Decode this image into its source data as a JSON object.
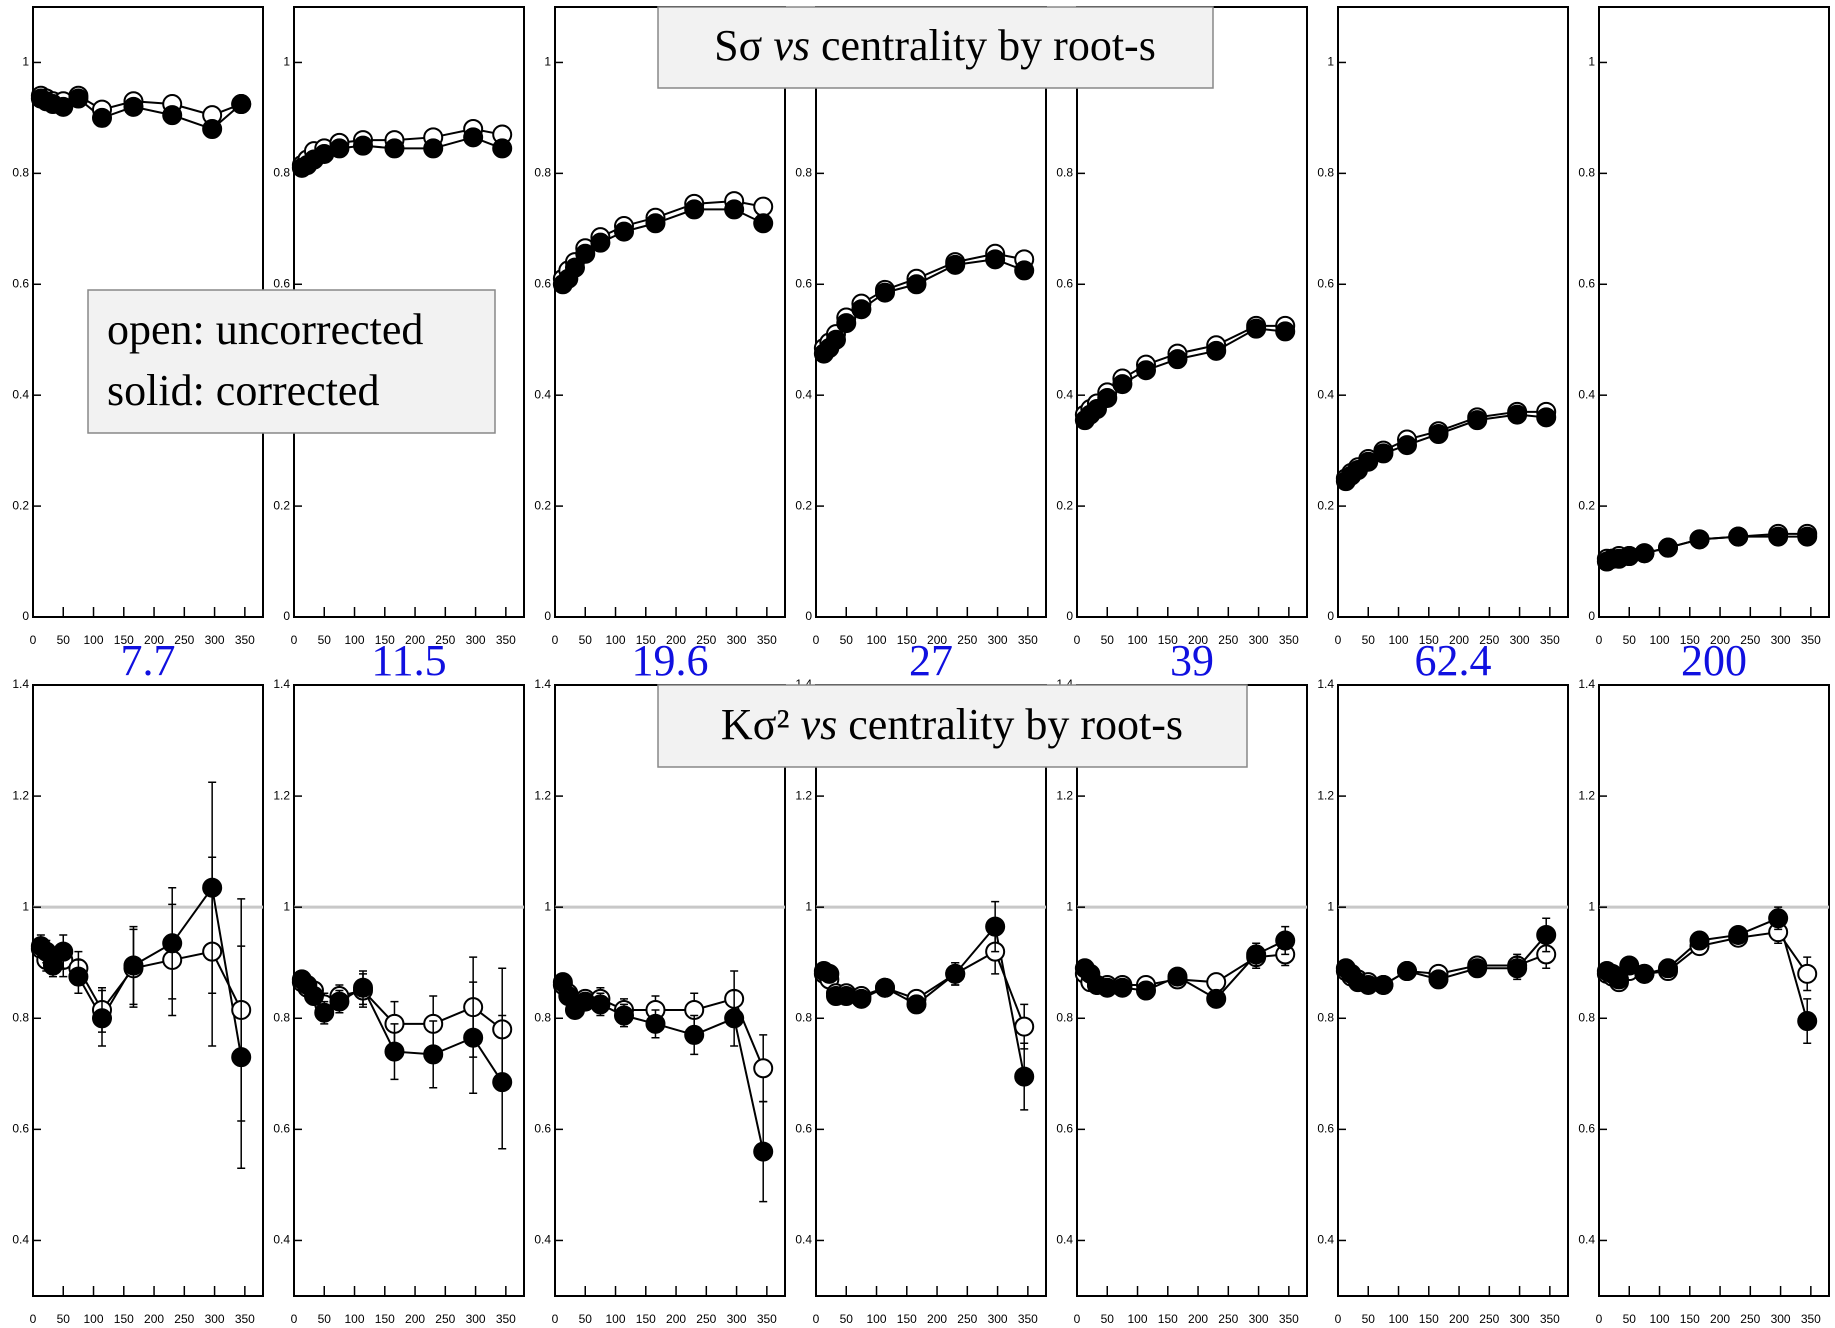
{
  "headers": {
    "top": [
      "Sσ",
      "vs",
      "centrality by root-s"
    ],
    "bottom": [
      "Kσ²",
      "vs",
      "centrality by root-s"
    ]
  },
  "legend_box": [
    "open: uncorrected",
    "solid: corrected"
  ],
  "chart_data": [
    {
      "type": "line",
      "x": [
        13,
        22,
        33,
        50,
        75,
        114,
        166,
        230,
        296,
        344
      ],
      "xlim": [
        0,
        380
      ],
      "xticks": [
        0,
        50,
        100,
        150,
        200,
        250,
        300,
        350
      ],
      "ylim": [
        0,
        1.1
      ],
      "yticks": [
        0,
        0.2,
        0.4,
        0.6,
        0.8,
        1
      ],
      "series": [
        {
          "color": "#000000",
          "filled": false,
          "values": [
            0.94,
            0.935,
            0.93,
            0.93,
            0.94,
            0.915,
            0.93,
            0.925,
            0.905,
            0.925
          ]
        },
        {
          "color": "#000000",
          "filled": true,
          "values": [
            0.935,
            0.93,
            0.925,
            0.92,
            0.935,
            0.9,
            0.92,
            0.905,
            0.88,
            0.925
          ]
        }
      ]
    },
    {
      "type": "line",
      "x": [
        13,
        22,
        33,
        50,
        75,
        114,
        166,
        230,
        296,
        344
      ],
      "xlim": [
        0,
        380
      ],
      "xticks": [
        0,
        50,
        100,
        150,
        200,
        250,
        300,
        350
      ],
      "ylim": [
        0,
        1.1
      ],
      "yticks": [
        0,
        0.2,
        0.4,
        0.6,
        0.8,
        1
      ],
      "series": [
        {
          "color": "#000000",
          "filled": false,
          "values": [
            0.815,
            0.825,
            0.84,
            0.845,
            0.855,
            0.86,
            0.86,
            0.865,
            0.88,
            0.87
          ]
        },
        {
          "color": "#000000",
          "filled": true,
          "values": [
            0.81,
            0.815,
            0.825,
            0.835,
            0.845,
            0.85,
            0.845,
            0.845,
            0.865,
            0.845
          ]
        }
      ]
    },
    {
      "type": "line",
      "x": [
        13,
        22,
        33,
        50,
        75,
        114,
        166,
        230,
        296,
        344
      ],
      "xlim": [
        0,
        380
      ],
      "xticks": [
        0,
        50,
        100,
        150,
        200,
        250,
        300,
        350
      ],
      "ylim": [
        0,
        1.1
      ],
      "yticks": [
        0,
        0.2,
        0.4,
        0.6,
        0.8,
        1
      ],
      "series": [
        {
          "color": "#000000",
          "filled": false,
          "values": [
            0.61,
            0.625,
            0.64,
            0.665,
            0.685,
            0.705,
            0.72,
            0.745,
            0.75,
            0.74
          ]
        },
        {
          "color": "#000000",
          "filled": true,
          "values": [
            0.6,
            0.61,
            0.63,
            0.655,
            0.675,
            0.695,
            0.71,
            0.735,
            0.735,
            0.71
          ]
        }
      ]
    },
    {
      "type": "line",
      "x": [
        13,
        22,
        33,
        50,
        75,
        114,
        166,
        230,
        296,
        344
      ],
      "xlim": [
        0,
        380
      ],
      "xticks": [
        0,
        50,
        100,
        150,
        200,
        250,
        300,
        350
      ],
      "ylim": [
        0,
        1.1
      ],
      "yticks": [
        0,
        0.2,
        0.4,
        0.6,
        0.8,
        1
      ],
      "series": [
        {
          "color": "#000000",
          "filled": false,
          "values": [
            0.485,
            0.495,
            0.51,
            0.54,
            0.565,
            0.59,
            0.61,
            0.64,
            0.655,
            0.645
          ]
        },
        {
          "color": "#000000",
          "filled": true,
          "values": [
            0.475,
            0.485,
            0.5,
            0.53,
            0.555,
            0.585,
            0.6,
            0.635,
            0.645,
            0.625
          ]
        }
      ]
    },
    {
      "type": "line",
      "x": [
        13,
        22,
        33,
        50,
        75,
        114,
        166,
        230,
        296,
        344
      ],
      "xlim": [
        0,
        380
      ],
      "xticks": [
        0,
        50,
        100,
        150,
        200,
        250,
        300,
        350
      ],
      "ylim": [
        0,
        1.1
      ],
      "yticks": [
        0,
        0.2,
        0.4,
        0.6,
        0.8,
        1
      ],
      "series": [
        {
          "color": "#000000",
          "filled": false,
          "values": [
            0.365,
            0.375,
            0.385,
            0.405,
            0.43,
            0.455,
            0.475,
            0.49,
            0.525,
            0.525
          ]
        },
        {
          "color": "#000000",
          "filled": true,
          "values": [
            0.355,
            0.365,
            0.375,
            0.395,
            0.42,
            0.445,
            0.465,
            0.48,
            0.52,
            0.515
          ]
        }
      ]
    },
    {
      "type": "line",
      "x": [
        13,
        22,
        33,
        50,
        75,
        114,
        166,
        230,
        296,
        344
      ],
      "xlim": [
        0,
        380
      ],
      "xticks": [
        0,
        50,
        100,
        150,
        200,
        250,
        300,
        350
      ],
      "ylim": [
        0,
        1.1
      ],
      "yticks": [
        0,
        0.2,
        0.4,
        0.6,
        0.8,
        1
      ],
      "series": [
        {
          "color": "#000000",
          "filled": false,
          "values": [
            0.25,
            0.26,
            0.27,
            0.285,
            0.3,
            0.32,
            0.335,
            0.36,
            0.37,
            0.37
          ]
        },
        {
          "color": "#000000",
          "filled": true,
          "values": [
            0.245,
            0.255,
            0.265,
            0.28,
            0.295,
            0.31,
            0.33,
            0.355,
            0.365,
            0.36
          ]
        }
      ]
    },
    {
      "type": "line",
      "x": [
        13,
        22,
        33,
        50,
        75,
        114,
        166,
        230,
        296,
        344
      ],
      "xlim": [
        0,
        380
      ],
      "xticks": [
        0,
        50,
        100,
        150,
        200,
        250,
        300,
        350
      ],
      "ylim": [
        0,
        1.1
      ],
      "yticks": [
        0,
        0.2,
        0.4,
        0.6,
        0.8,
        1
      ],
      "series": [
        {
          "color": "#000000",
          "filled": false,
          "values": [
            0.105,
            0.105,
            0.11,
            0.11,
            0.115,
            0.125,
            0.14,
            0.145,
            0.15,
            0.15
          ]
        },
        {
          "color": "#000000",
          "filled": true,
          "values": [
            0.1,
            0.105,
            0.105,
            0.11,
            0.115,
            0.125,
            0.14,
            0.145,
            0.145,
            0.145
          ]
        }
      ]
    },
    {
      "type": "line",
      "title": "7.7",
      "x": [
        13,
        22,
        33,
        50,
        75,
        114,
        166,
        230,
        296,
        344
      ],
      "xlim": [
        0,
        380
      ],
      "xticks": [
        0,
        50,
        100,
        150,
        200,
        250,
        300,
        350
      ],
      "ylim": [
        0.3,
        1.4
      ],
      "yticks": [
        0.4,
        0.6,
        0.8,
        1,
        1.2,
        1.4
      ],
      "reference_line": 1,
      "reference_color": "#c8c8c8",
      "series": [
        {
          "color": "#000000",
          "filled": false,
          "values": [
            0.925,
            0.905,
            0.9,
            0.905,
            0.89,
            0.815,
            0.89,
            0.905,
            0.92,
            0.815
          ],
          "errors": [
            0.02,
            0.02,
            0.02,
            0.03,
            0.03,
            0.04,
            0.07,
            0.1,
            0.17,
            0.2
          ]
        },
        {
          "color": "#000000",
          "filled": true,
          "values": [
            0.93,
            0.92,
            0.895,
            0.92,
            0.875,
            0.8,
            0.895,
            0.935,
            1.035,
            0.73
          ],
          "errors": [
            0.02,
            0.02,
            0.02,
            0.03,
            0.03,
            0.05,
            0.07,
            0.1,
            0.19,
            0.2
          ]
        }
      ]
    },
    {
      "type": "line",
      "title": "11.5",
      "x": [
        13,
        22,
        33,
        50,
        75,
        114,
        166,
        230,
        296,
        344
      ],
      "xlim": [
        0,
        380
      ],
      "xticks": [
        0,
        50,
        100,
        150,
        200,
        250,
        300,
        350
      ],
      "ylim": [
        0.3,
        1.4
      ],
      "yticks": [
        0.4,
        0.6,
        0.8,
        1,
        1.2,
        1.4
      ],
      "reference_line": 1,
      "reference_color": "#c8c8c8",
      "series": [
        {
          "color": "#000000",
          "filled": false,
          "values": [
            0.865,
            0.855,
            0.85,
            0.825,
            0.84,
            0.85,
            0.79,
            0.79,
            0.82,
            0.78
          ],
          "errors": [
            0.01,
            0.01,
            0.015,
            0.02,
            0.02,
            0.03,
            0.04,
            0.05,
            0.09,
            0.11
          ]
        },
        {
          "color": "#000000",
          "filled": true,
          "values": [
            0.87,
            0.86,
            0.84,
            0.81,
            0.83,
            0.855,
            0.74,
            0.735,
            0.765,
            0.685
          ],
          "errors": [
            0.01,
            0.01,
            0.015,
            0.02,
            0.02,
            0.03,
            0.05,
            0.06,
            0.1,
            0.12
          ]
        }
      ]
    },
    {
      "type": "line",
      "title": "19.6",
      "x": [
        13,
        22,
        33,
        50,
        75,
        114,
        166,
        230,
        296,
        344
      ],
      "xlim": [
        0,
        380
      ],
      "xticks": [
        0,
        50,
        100,
        150,
        200,
        250,
        300,
        350
      ],
      "ylim": [
        0.3,
        1.4
      ],
      "yticks": [
        0.4,
        0.6,
        0.8,
        1,
        1.2,
        1.4
      ],
      "reference_line": 1,
      "reference_color": "#c8c8c8",
      "series": [
        {
          "color": "#000000",
          "filled": false,
          "values": [
            0.86,
            0.845,
            0.83,
            0.835,
            0.835,
            0.815,
            0.815,
            0.815,
            0.835,
            0.71
          ],
          "errors": [
            0.01,
            0.01,
            0.015,
            0.015,
            0.02,
            0.02,
            0.025,
            0.03,
            0.05,
            0.06
          ]
        },
        {
          "color": "#000000",
          "filled": true,
          "values": [
            0.865,
            0.84,
            0.815,
            0.83,
            0.825,
            0.805,
            0.79,
            0.77,
            0.8,
            0.56
          ],
          "errors": [
            0.01,
            0.01,
            0.015,
            0.015,
            0.02,
            0.02,
            0.025,
            0.035,
            0.05,
            0.09
          ]
        }
      ]
    },
    {
      "type": "line",
      "title": "27",
      "x": [
        13,
        22,
        33,
        50,
        75,
        114,
        166,
        230,
        296,
        344
      ],
      "xlim": [
        0,
        380
      ],
      "xticks": [
        0,
        50,
        100,
        150,
        200,
        250,
        300,
        350
      ],
      "ylim": [
        0.3,
        1.4
      ],
      "yticks": [
        0.4,
        0.6,
        0.8,
        1,
        1.2,
        1.4
      ],
      "reference_line": 1,
      "reference_color": "#c8c8c8",
      "series": [
        {
          "color": "#000000",
          "filled": false,
          "values": [
            0.88,
            0.87,
            0.845,
            0.845,
            0.84,
            0.855,
            0.835,
            0.88,
            0.92,
            0.785
          ],
          "errors": [
            0.01,
            0.01,
            0.01,
            0.01,
            0.015,
            0.015,
            0.015,
            0.02,
            0.04,
            0.04
          ]
        },
        {
          "color": "#000000",
          "filled": true,
          "values": [
            0.885,
            0.88,
            0.84,
            0.84,
            0.835,
            0.855,
            0.825,
            0.88,
            0.965,
            0.695
          ],
          "errors": [
            0.01,
            0.01,
            0.01,
            0.01,
            0.015,
            0.015,
            0.015,
            0.02,
            0.045,
            0.06
          ]
        }
      ]
    },
    {
      "type": "line",
      "title": "39",
      "x": [
        13,
        22,
        33,
        50,
        75,
        114,
        166,
        230,
        296,
        344
      ],
      "xlim": [
        0,
        380
      ],
      "xticks": [
        0,
        50,
        100,
        150,
        200,
        250,
        300,
        350
      ],
      "ylim": [
        0.3,
        1.4
      ],
      "yticks": [
        0.4,
        0.6,
        0.8,
        1,
        1.2,
        1.4
      ],
      "reference_line": 1,
      "reference_color": "#c8c8c8",
      "series": [
        {
          "color": "#000000",
          "filled": false,
          "values": [
            0.88,
            0.865,
            0.86,
            0.86,
            0.86,
            0.86,
            0.87,
            0.865,
            0.91,
            0.915
          ],
          "errors": [
            0.01,
            0.01,
            0.01,
            0.01,
            0.01,
            0.01,
            0.01,
            0.015,
            0.02,
            0.02
          ]
        },
        {
          "color": "#000000",
          "filled": true,
          "values": [
            0.89,
            0.88,
            0.86,
            0.855,
            0.855,
            0.85,
            0.875,
            0.835,
            0.915,
            0.94
          ],
          "errors": [
            0.01,
            0.01,
            0.01,
            0.01,
            0.01,
            0.01,
            0.01,
            0.015,
            0.02,
            0.025
          ]
        }
      ]
    },
    {
      "type": "line",
      "title": "62.4",
      "x": [
        13,
        22,
        33,
        50,
        75,
        114,
        166,
        230,
        296,
        344
      ],
      "xlim": [
        0,
        380
      ],
      "xticks": [
        0,
        50,
        100,
        150,
        200,
        250,
        300,
        350
      ],
      "ylim": [
        0.3,
        1.4
      ],
      "yticks": [
        0.4,
        0.6,
        0.8,
        1,
        1.2,
        1.4
      ],
      "reference_line": 1,
      "reference_color": "#c8c8c8",
      "series": [
        {
          "color": "#000000",
          "filled": false,
          "values": [
            0.885,
            0.875,
            0.87,
            0.865,
            0.86,
            0.885,
            0.88,
            0.895,
            0.895,
            0.915
          ],
          "errors": [
            0.01,
            0.01,
            0.01,
            0.01,
            0.01,
            0.01,
            0.01,
            0.01,
            0.02,
            0.025
          ]
        },
        {
          "color": "#000000",
          "filled": true,
          "values": [
            0.89,
            0.88,
            0.865,
            0.86,
            0.86,
            0.885,
            0.87,
            0.89,
            0.89,
            0.95
          ],
          "errors": [
            0.01,
            0.01,
            0.01,
            0.01,
            0.01,
            0.01,
            0.01,
            0.01,
            0.02,
            0.03
          ]
        }
      ]
    },
    {
      "type": "line",
      "title": "200",
      "x": [
        13,
        22,
        33,
        50,
        75,
        114,
        166,
        230,
        296,
        344
      ],
      "xlim": [
        0,
        380
      ],
      "xticks": [
        0,
        50,
        100,
        150,
        200,
        250,
        300,
        350
      ],
      "ylim": [
        0.3,
        1.4
      ],
      "yticks": [
        0.4,
        0.6,
        0.8,
        1,
        1.2,
        1.4
      ],
      "reference_line": 1,
      "reference_color": "#c8c8c8",
      "series": [
        {
          "color": "#000000",
          "filled": false,
          "values": [
            0.88,
            0.875,
            0.865,
            0.885,
            0.88,
            0.885,
            0.93,
            0.945,
            0.955,
            0.88
          ],
          "errors": [
            0.01,
            0.01,
            0.01,
            0.01,
            0.01,
            0.01,
            0.01,
            0.01,
            0.02,
            0.03
          ]
        },
        {
          "color": "#000000",
          "filled": true,
          "values": [
            0.885,
            0.88,
            0.87,
            0.895,
            0.88,
            0.89,
            0.94,
            0.95,
            0.98,
            0.795
          ],
          "errors": [
            0.01,
            0.01,
            0.01,
            0.01,
            0.01,
            0.01,
            0.01,
            0.01,
            0.02,
            0.04
          ]
        }
      ]
    }
  ]
}
